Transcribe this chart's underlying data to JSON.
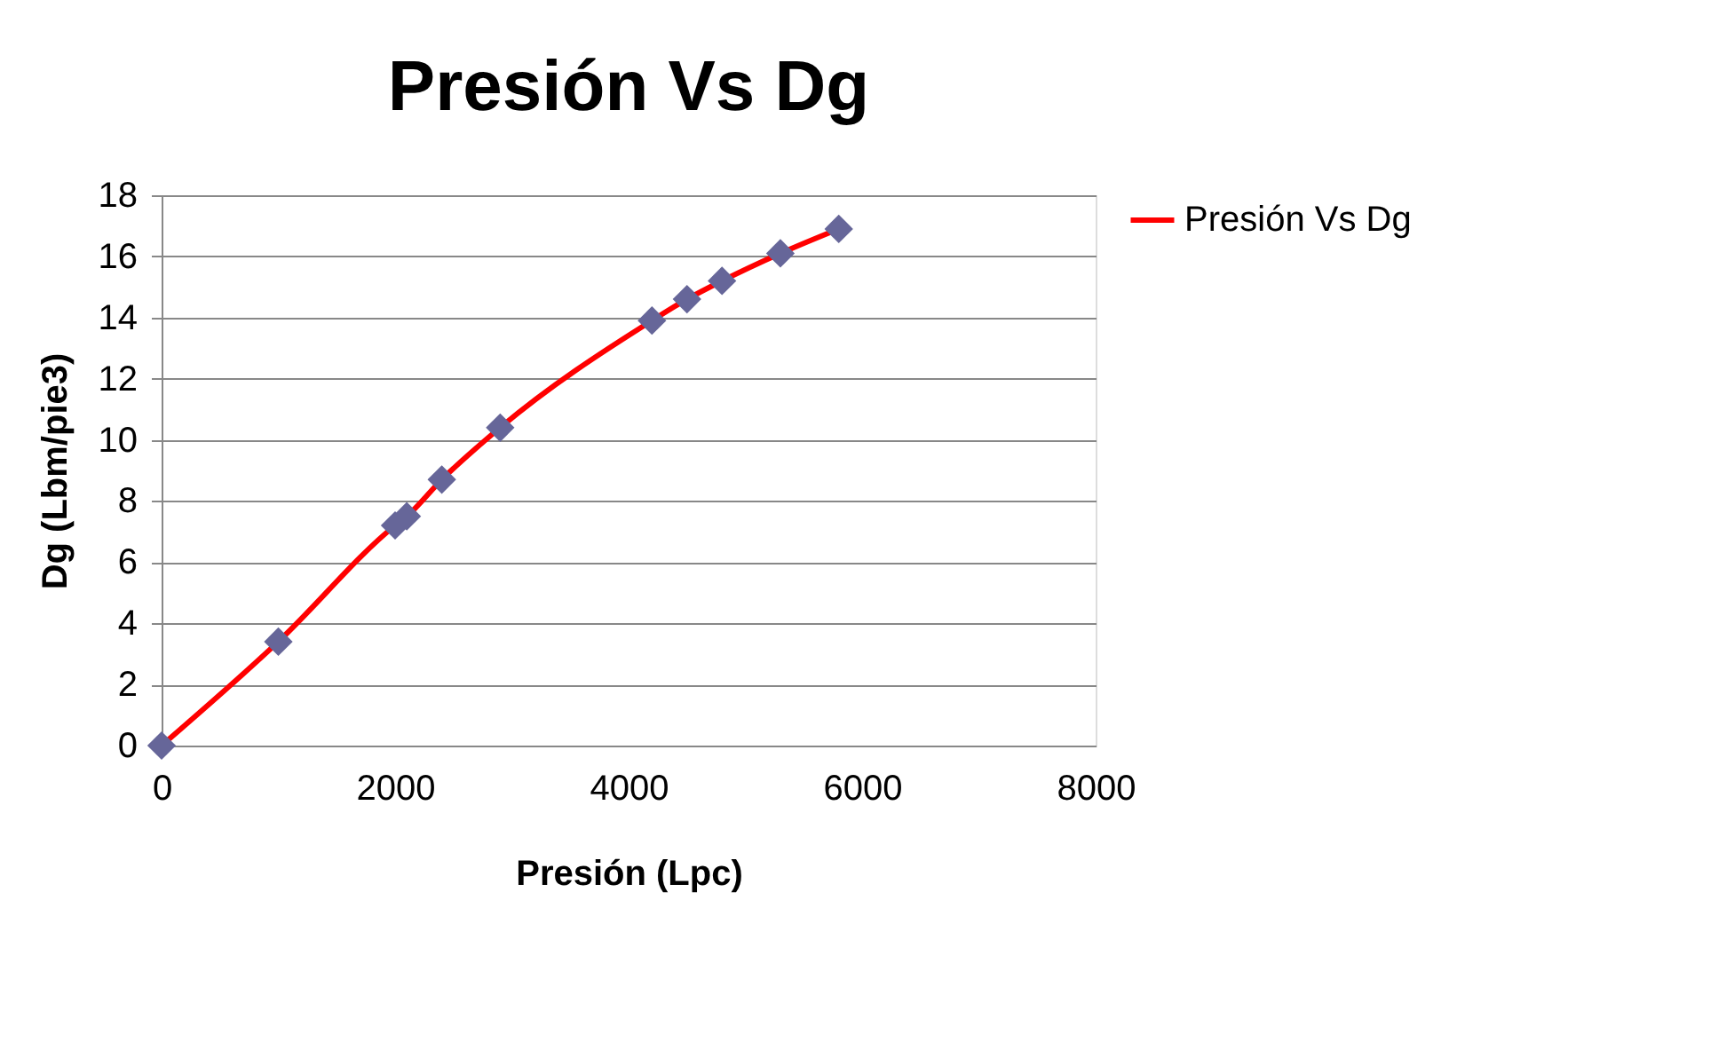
{
  "chart_data": {
    "type": "line",
    "title": "Presión Vs Dg",
    "xlabel": "Presión (Lpc)",
    "ylabel": "Dg (Lbm/pie3)",
    "x": [
      0,
      1000,
      2000,
      2100,
      2400,
      2900,
      4200,
      4500,
      4800,
      5300,
      5800
    ],
    "series": [
      {
        "name": "Presión Vs Dg",
        "color": "#ff0000",
        "values": [
          0,
          3.4,
          7.2,
          7.5,
          8.7,
          10.4,
          13.9,
          14.6,
          15.2,
          16.1,
          16.9
        ]
      }
    ],
    "xlim": [
      0,
      8000
    ],
    "xticks": [
      0,
      2000,
      4000,
      6000,
      8000
    ],
    "ylim": [
      0,
      18
    ],
    "yticks": [
      0,
      2,
      4,
      6,
      8,
      10,
      12,
      14,
      16,
      18
    ],
    "grid": "y",
    "legend": "right",
    "marker": "diamond",
    "line_style": "solid"
  }
}
